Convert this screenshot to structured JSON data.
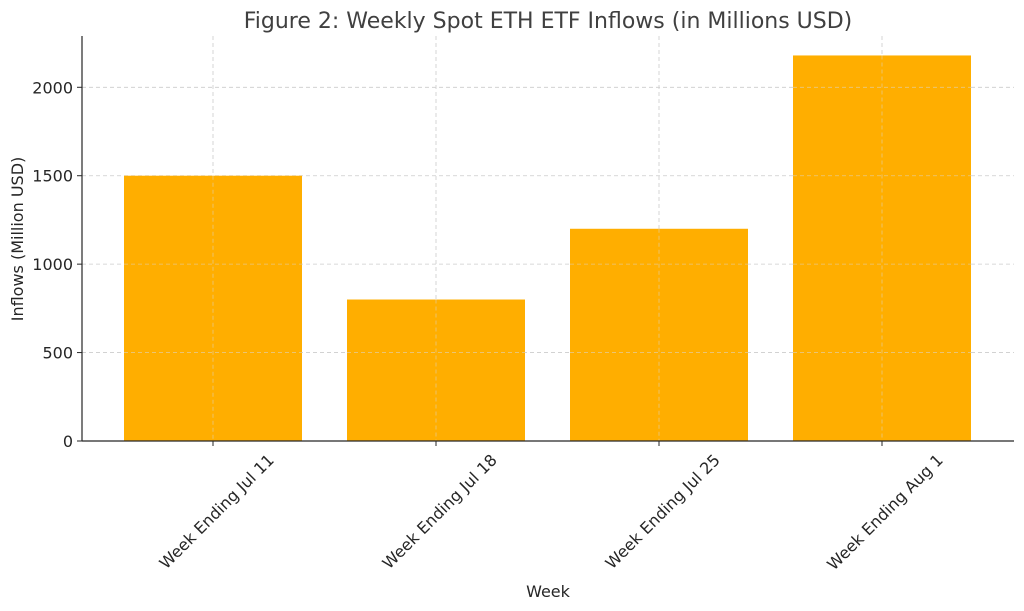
{
  "chart_data": {
    "type": "bar",
    "title": "Figure 2: Weekly Spot ETH ETF Inflows (in Millions USD)",
    "xlabel": "Week",
    "ylabel": "Inflows (Million USD)",
    "categories": [
      "Week Ending Jul 11",
      "Week Ending Jul 18",
      "Week Ending Jul 25",
      "Week Ending Aug 1"
    ],
    "values": [
      1500,
      800,
      1200,
      2180
    ],
    "ylim": [
      0,
      2290
    ],
    "yticks": [
      0,
      500,
      1000,
      1500,
      2000
    ],
    "grid": true,
    "bar_color": "#ffae00"
  }
}
